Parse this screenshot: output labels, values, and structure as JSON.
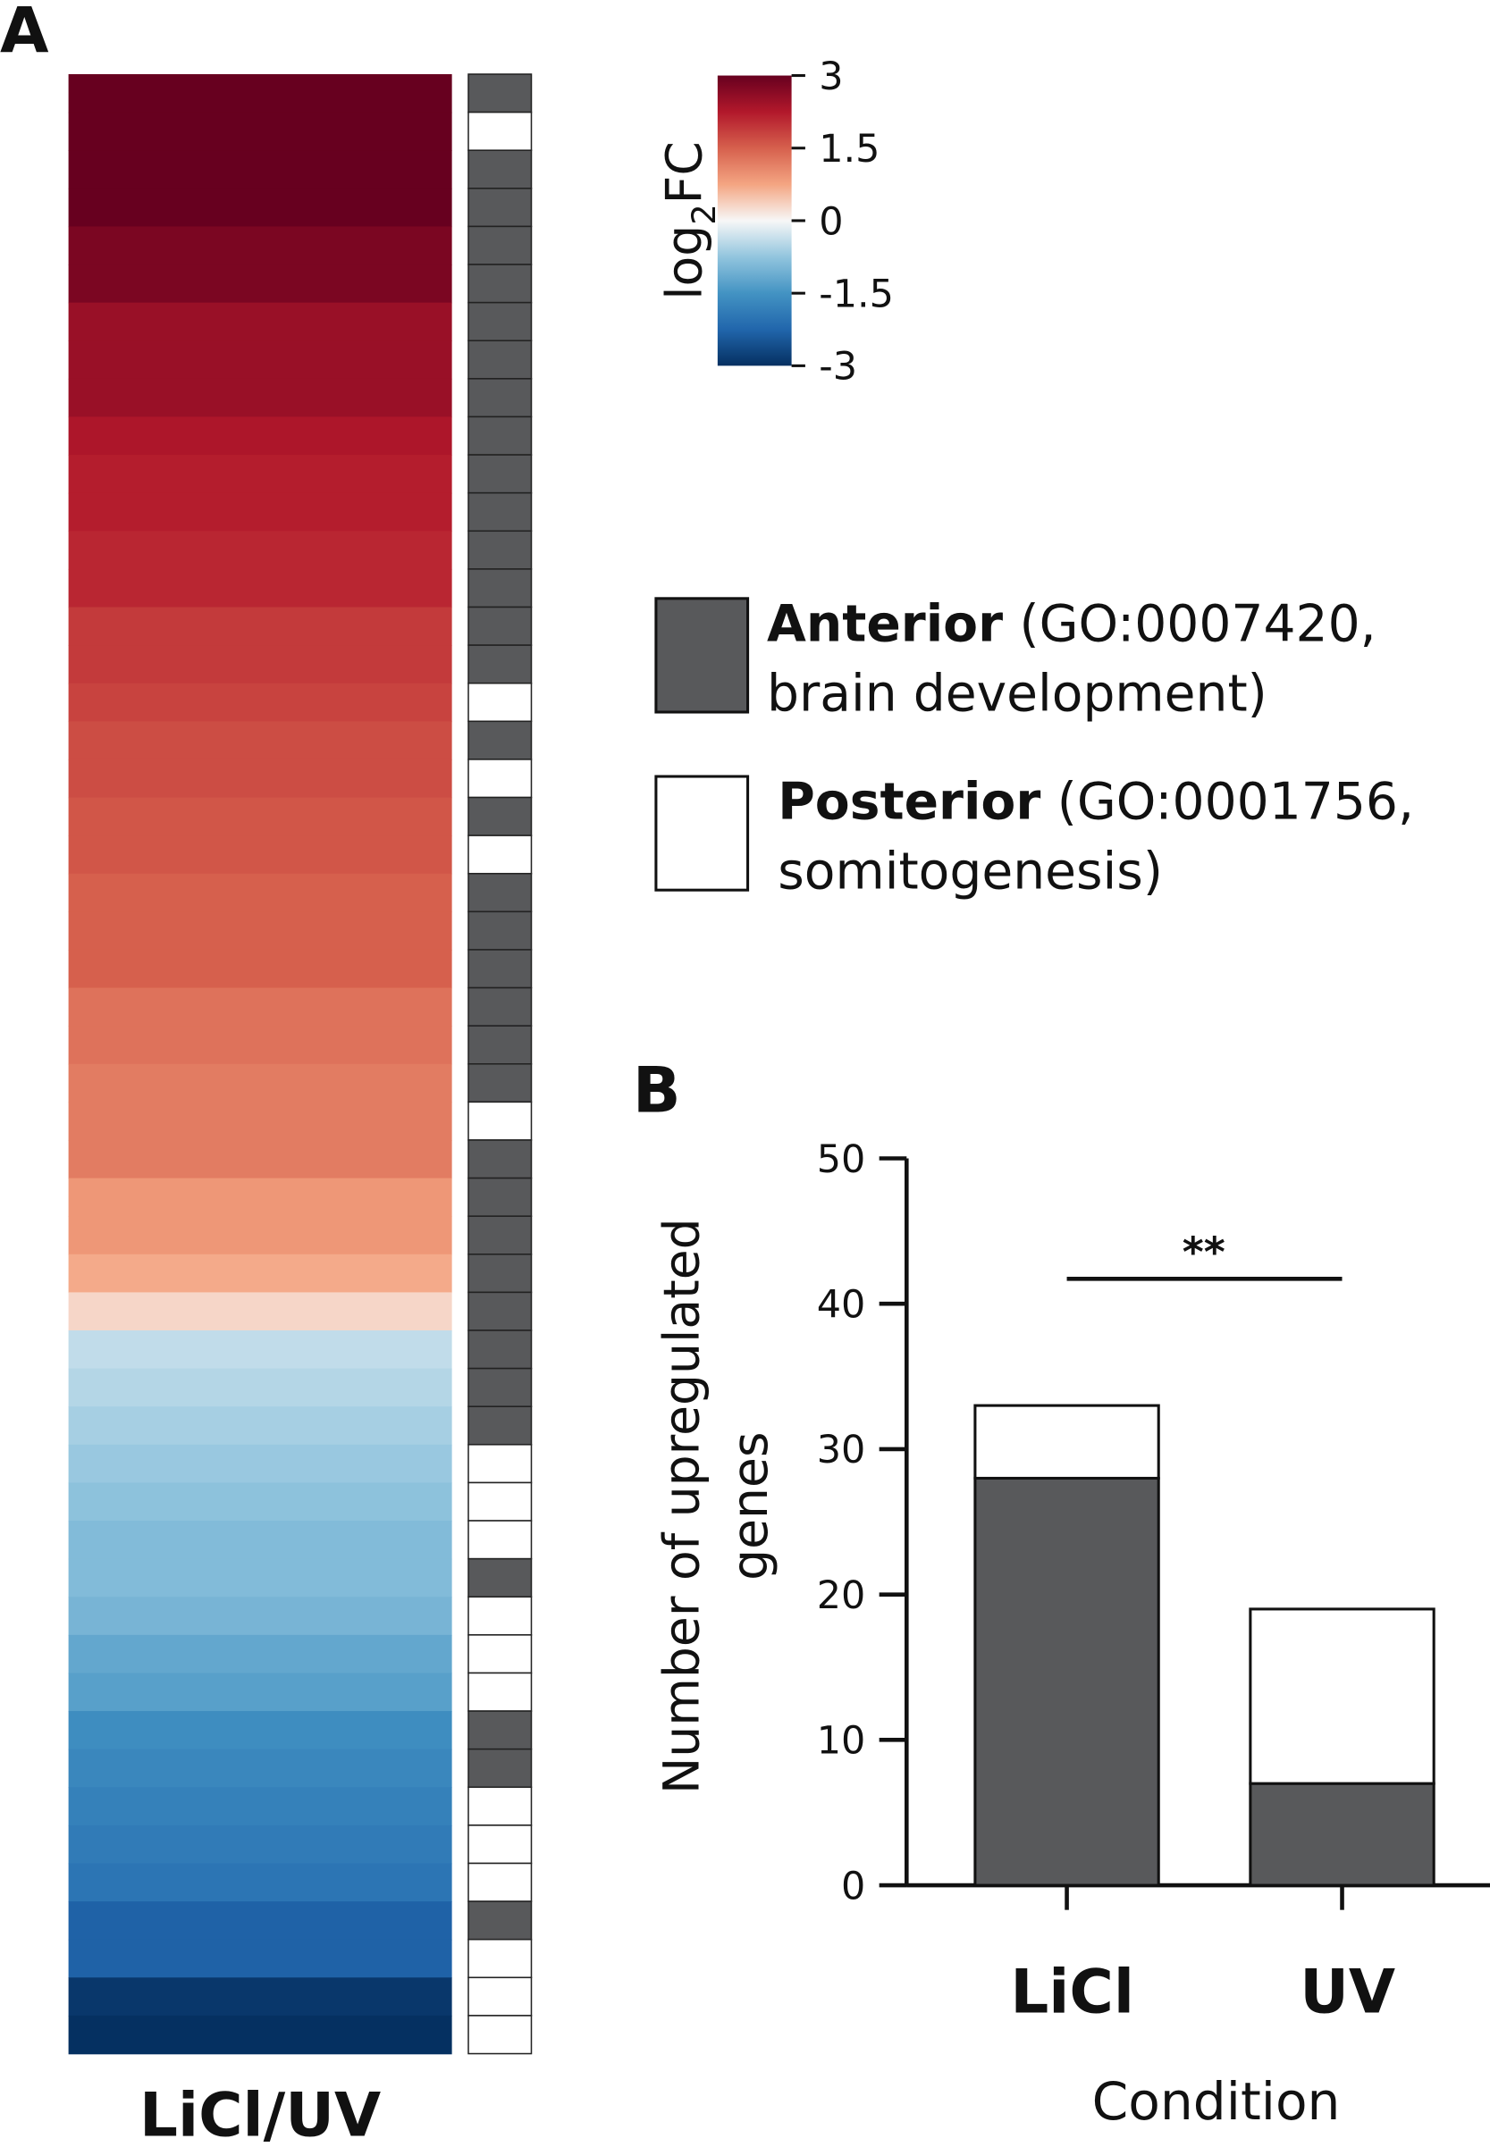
{
  "panel_labels": [
    "A",
    "B"
  ],
  "chart_data": [
    {
      "type": "heatmap",
      "xlabel": "LiCl/UV",
      "values": [
        3.2,
        3.1,
        3.0,
        3.0,
        2.8,
        2.8,
        2.5,
        2.5,
        2.5,
        2.3,
        2.2,
        2.2,
        2.1,
        2.1,
        1.9,
        1.9,
        1.8,
        1.7,
        1.7,
        1.6,
        1.6,
        1.5,
        1.5,
        1.5,
        1.3,
        1.3,
        1.2,
        1.2,
        1.2,
        0.9,
        0.9,
        0.7,
        0.3,
        -0.4,
        -0.5,
        -0.6,
        -0.7,
        -0.8,
        -0.9,
        -0.9,
        -1.0,
        -1.2,
        -1.3,
        -1.6,
        -1.7,
        -1.8,
        -1.9,
        -2.0,
        -2.3,
        -2.3,
        -2.9,
        -3.0
      ],
      "annotation": [
        "Anterior",
        "Posterior",
        "Anterior",
        "Anterior",
        "Anterior",
        "Anterior",
        "Anterior",
        "Anterior",
        "Anterior",
        "Anterior",
        "Anterior",
        "Anterior",
        "Anterior",
        "Anterior",
        "Anterior",
        "Anterior",
        "Posterior",
        "Anterior",
        "Posterior",
        "Anterior",
        "Posterior",
        "Anterior",
        "Anterior",
        "Anterior",
        "Anterior",
        "Anterior",
        "Anterior",
        "Posterior",
        "Anterior",
        "Anterior",
        "Anterior",
        "Anterior",
        "Anterior",
        "Anterior",
        "Anterior",
        "Anterior",
        "Posterior",
        "Posterior",
        "Posterior",
        "Anterior",
        "Posterior",
        "Posterior",
        "Posterior",
        "Anterior",
        "Anterior",
        "Posterior",
        "Posterior",
        "Posterior",
        "Anterior",
        "Posterior",
        "Posterior",
        "Posterior"
      ],
      "colorbar": {
        "label": {
          "main": "log",
          "sub": "2",
          "suffix": "FC"
        },
        "lim": [
          -3,
          3
        ],
        "ticks": [
          3,
          1.5,
          0,
          -1.5,
          -3
        ],
        "colors": [
          "#053061",
          "#2166ac",
          "#4393c3",
          "#92c5de",
          "#f7f7f7",
          "#f4a582",
          "#d6604d",
          "#b2182b",
          "#67001f"
        ]
      }
    },
    {
      "type": "stacked-bar",
      "xlabel": "Condition",
      "ylabel": [
        "Number of  upregulated",
        "genes"
      ],
      "categories": [
        "LiCl",
        "UV"
      ],
      "series": [
        {
          "name": "Anterior",
          "color": "#58595b",
          "values": [
            28,
            7
          ],
          "description": [
            "(GO:0007420,",
            "brain development)"
          ]
        },
        {
          "name": "Posterior",
          "color": "#ffffff",
          "values": [
            5,
            12
          ],
          "description": [
            "(GO:0001756,",
            "somitogenesis)"
          ]
        }
      ],
      "ylim": [
        0,
        50
      ],
      "yticks": [
        0,
        10,
        20,
        30,
        40,
        50
      ],
      "significance": "**"
    }
  ]
}
